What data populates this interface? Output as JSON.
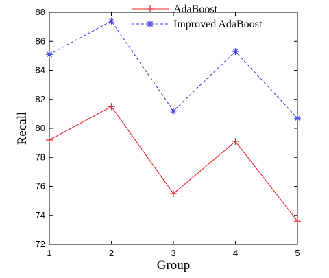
{
  "chart_data": {
    "type": "line",
    "x": [
      1,
      2,
      3,
      4,
      5
    ],
    "xticks": [
      "1",
      "2",
      "3",
      "4",
      "5"
    ],
    "yticks": [
      "72",
      "74",
      "76",
      "78",
      "80",
      "82",
      "84",
      "86",
      "88"
    ],
    "xlim": [
      1,
      5
    ],
    "ylim": [
      72,
      88
    ],
    "xlabel": "Group",
    "ylabel": "Recall",
    "grid": false,
    "legend_position": "top-center",
    "series": [
      {
        "name": "AdaBoost",
        "values": [
          79.2,
          81.5,
          75.5,
          79.1,
          73.6
        ],
        "color": "#e8242a",
        "line_style": "solid",
        "marker": "plus"
      },
      {
        "name": "Improved AdaBoost",
        "values": [
          85.1,
          87.4,
          81.2,
          85.3,
          80.7
        ],
        "color": "#3a3ae6",
        "line_style": "dashed",
        "marker": "asterisk"
      }
    ]
  }
}
